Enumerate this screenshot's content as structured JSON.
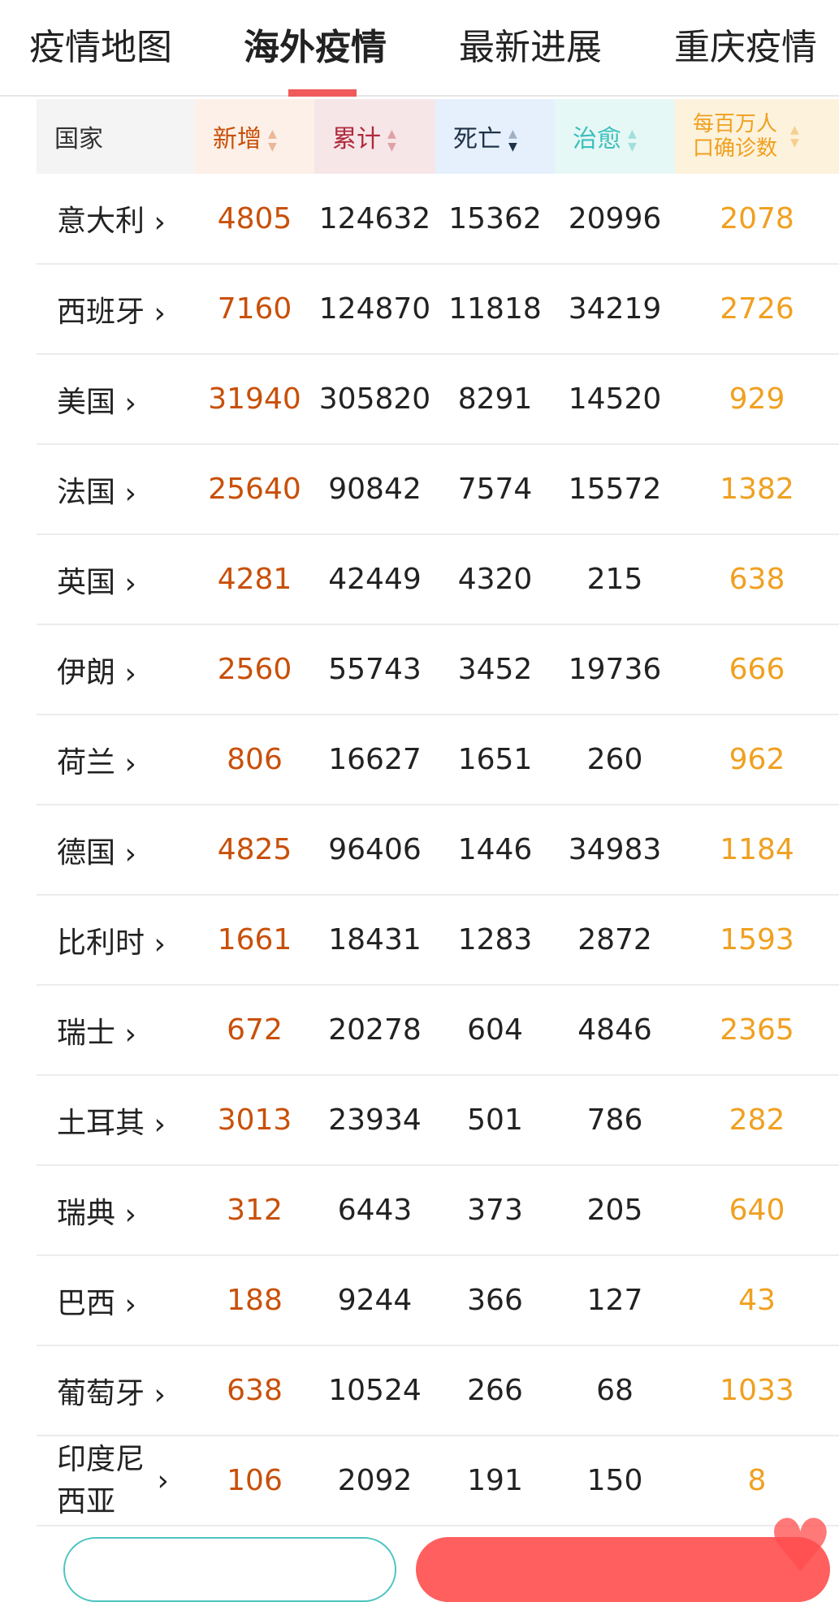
{
  "tabs": [
    {
      "label": "疫情地图"
    },
    {
      "label": "海外疫情",
      "active": true
    },
    {
      "label": "最新进展"
    },
    {
      "label": "重庆疫情"
    }
  ],
  "headers": {
    "country": "国家",
    "new": "新增",
    "total": "累计",
    "deaths": "死亡",
    "cured": "治愈",
    "per_million": "每百万人口确诊数"
  },
  "colors": {
    "new": "#c8500a",
    "total": "#b02a3c",
    "deaths": "#1e3248",
    "cured": "#3cc0bc",
    "per_million": "#f0a020",
    "accent": "#f05a5a"
  },
  "rows": [
    {
      "country": "意大利",
      "new": "4805",
      "total": "124632",
      "deaths": "15362",
      "cured": "20996",
      "pm": "2078"
    },
    {
      "country": "西班牙",
      "new": "7160",
      "total": "124870",
      "deaths": "11818",
      "cured": "34219",
      "pm": "2726"
    },
    {
      "country": "美国",
      "new": "31940",
      "total": "305820",
      "deaths": "8291",
      "cured": "14520",
      "pm": "929"
    },
    {
      "country": "法国",
      "new": "25640",
      "total": "90842",
      "deaths": "7574",
      "cured": "15572",
      "pm": "1382"
    },
    {
      "country": "英国",
      "new": "4281",
      "total": "42449",
      "deaths": "4320",
      "cured": "215",
      "pm": "638"
    },
    {
      "country": "伊朗",
      "new": "2560",
      "total": "55743",
      "deaths": "3452",
      "cured": "19736",
      "pm": "666"
    },
    {
      "country": "荷兰",
      "new": "806",
      "total": "16627",
      "deaths": "1651",
      "cured": "260",
      "pm": "962"
    },
    {
      "country": "德国",
      "new": "4825",
      "total": "96406",
      "deaths": "1446",
      "cured": "34983",
      "pm": "1184"
    },
    {
      "country": "比利时",
      "new": "1661",
      "total": "18431",
      "deaths": "1283",
      "cured": "2872",
      "pm": "1593"
    },
    {
      "country": "瑞士",
      "new": "672",
      "total": "20278",
      "deaths": "604",
      "cured": "4846",
      "pm": "2365"
    },
    {
      "country": "土耳其",
      "new": "3013",
      "total": "23934",
      "deaths": "501",
      "cured": "786",
      "pm": "282"
    },
    {
      "country": "瑞典",
      "new": "312",
      "total": "6443",
      "deaths": "373",
      "cured": "205",
      "pm": "640"
    },
    {
      "country": "巴西",
      "new": "188",
      "total": "9244",
      "deaths": "366",
      "cured": "127",
      "pm": "43"
    },
    {
      "country": "葡萄牙",
      "new": "638",
      "total": "10524",
      "deaths": "266",
      "cured": "68",
      "pm": "1033"
    },
    {
      "country": "印度尼西亚",
      "new": "106",
      "total": "2092",
      "deaths": "191",
      "cured": "150",
      "pm": "8"
    }
  ]
}
